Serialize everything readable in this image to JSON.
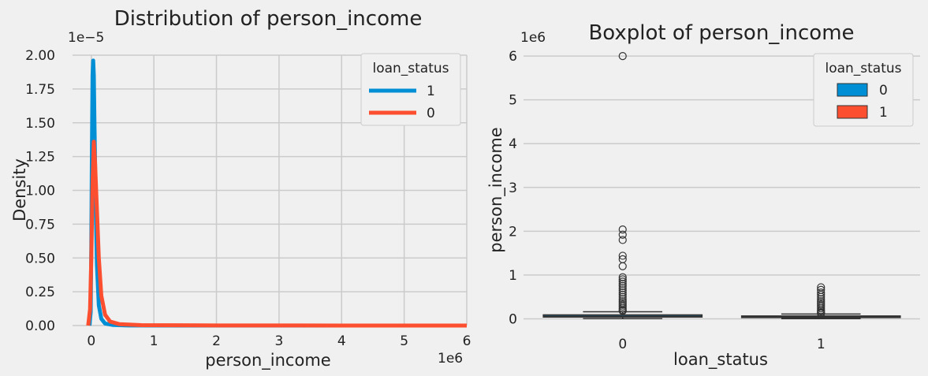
{
  "chart_data": [
    {
      "type": "line",
      "title": "Distribution of person_income",
      "xlabel": "person_income",
      "ylabel": "Density",
      "x_multiplier_label": "1e6",
      "y_multiplier_label": "1e−5",
      "xlim": [
        -0.3,
        6.0
      ],
      "ylim": [
        0,
        2.0
      ],
      "x_ticks": [
        0,
        1,
        2,
        3,
        4,
        5,
        6
      ],
      "x_tick_labels": [
        "0",
        "1",
        "2",
        "3",
        "4",
        "5",
        "6"
      ],
      "y_ticks": [
        0,
        0.25,
        0.5,
        0.75,
        1.0,
        1.25,
        1.5,
        1.75,
        2.0
      ],
      "y_tick_labels": [
        "0.00",
        "0.25",
        "0.50",
        "0.75",
        "1.00",
        "1.25",
        "1.50",
        "1.75",
        "2.00"
      ],
      "grid": true,
      "legend": {
        "title": "loan_status",
        "position": "top-right"
      },
      "series": [
        {
          "name": "1",
          "color": "#008fd5",
          "points": [
            [
              -0.03,
              0
            ],
            [
              -0.01,
              0.1
            ],
            [
              0.0,
              0.6
            ],
            [
              0.01,
              1.3
            ],
            [
              0.02,
              1.85
            ],
            [
              0.03,
              1.96
            ],
            [
              0.04,
              1.85
            ],
            [
              0.05,
              1.5
            ],
            [
              0.07,
              0.9
            ],
            [
              0.09,
              0.45
            ],
            [
              0.12,
              0.15
            ],
            [
              0.16,
              0.05
            ],
            [
              0.22,
              0.015
            ],
            [
              0.35,
              0.004
            ],
            [
              0.6,
              0.001
            ],
            [
              1.5,
              0.0002
            ],
            [
              6.0,
              0
            ]
          ]
        },
        {
          "name": "0",
          "color": "#fc4f30",
          "points": [
            [
              -0.05,
              0
            ],
            [
              -0.02,
              0.12
            ],
            [
              0.0,
              0.5
            ],
            [
              0.02,
              1.05
            ],
            [
              0.04,
              1.36
            ],
            [
              0.06,
              1.2
            ],
            [
              0.09,
              0.85
            ],
            [
              0.12,
              0.5
            ],
            [
              0.16,
              0.22
            ],
            [
              0.22,
              0.08
            ],
            [
              0.3,
              0.03
            ],
            [
              0.45,
              0.01
            ],
            [
              0.8,
              0.003
            ],
            [
              2.0,
              0.0008
            ],
            [
              4.0,
              0.0003
            ],
            [
              6.0,
              0.0002
            ]
          ]
        }
      ]
    },
    {
      "type": "box",
      "title": "Boxplot of person_income",
      "xlabel": "loan_status",
      "ylabel": "person_income",
      "y_multiplier_label": "1e6",
      "ylim": [
        -0.1,
        6.2
      ],
      "y_ticks": [
        0,
        1,
        2,
        3,
        4,
        5,
        6
      ],
      "y_tick_labels": [
        "0",
        "1",
        "2",
        "3",
        "4",
        "5",
        "6"
      ],
      "categories": [
        "0",
        "1"
      ],
      "grid": true,
      "legend": {
        "title": "loan_status",
        "position": "top-right"
      },
      "series": [
        {
          "name": "0",
          "color": "#008fd5",
          "whisker_low": 0.004,
          "q1": 0.04,
          "median": 0.06,
          "q3": 0.09,
          "whisker_high": 0.16,
          "outliers": [
            6.0,
            2.04,
            1.92,
            1.8,
            1.44,
            1.36,
            1.2,
            0.95,
            0.9,
            0.85,
            0.8,
            0.75,
            0.7,
            0.65,
            0.6,
            0.55,
            0.5,
            0.45,
            0.4,
            0.36,
            0.32,
            0.28,
            0.24,
            0.2,
            0.18
          ]
        },
        {
          "name": "1",
          "color": "#fc4f30",
          "whisker_low": 0.004,
          "q1": 0.03,
          "median": 0.045,
          "q3": 0.065,
          "whisker_high": 0.11,
          "outliers": [
            0.72,
            0.66,
            0.6,
            0.55,
            0.5,
            0.45,
            0.4,
            0.36,
            0.32,
            0.28,
            0.24,
            0.2,
            0.17,
            0.14,
            0.12
          ]
        }
      ]
    }
  ]
}
